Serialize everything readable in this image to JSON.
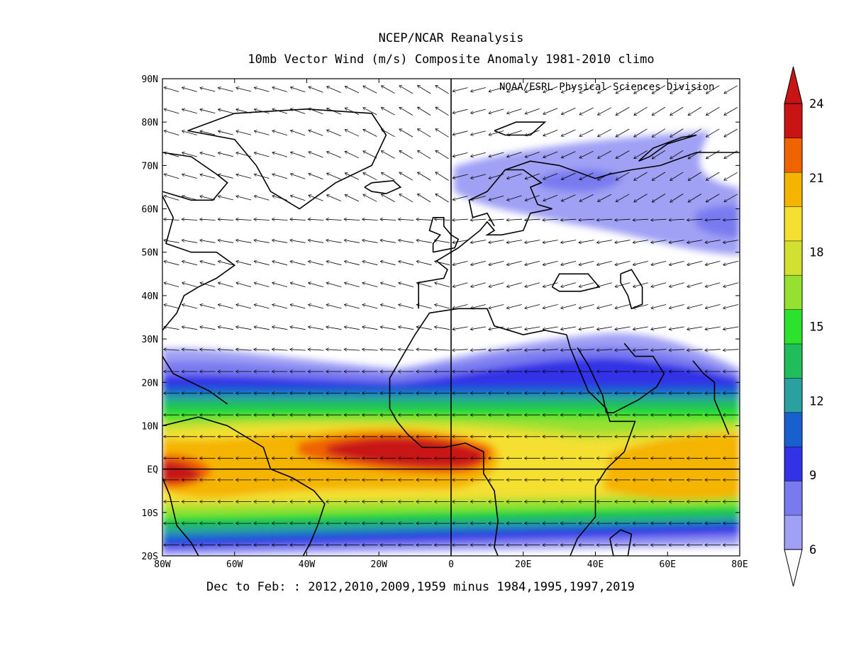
{
  "title": "NCEP/NCAR Reanalysis",
  "subtitle": "10mb Vector Wind (m/s) Composite Anomaly 1981-2010 climo",
  "credit": "NOAA/ESRL Physical Sciences Division",
  "caption": "Dec to Feb: : 2012,2010,2009,1959 minus 1984,1995,1997,2019",
  "map": {
    "lon_range": [
      -80,
      80
    ],
    "lat_range": [
      -20,
      90
    ],
    "lon_ticks": [
      "80W",
      "60W",
      "40W",
      "20W",
      "0",
      "20E",
      "40E",
      "60E",
      "80E"
    ],
    "lat_ticks": [
      "90N",
      "80N",
      "70N",
      "60N",
      "50N",
      "40N",
      "30N",
      "20N",
      "10N",
      "EQ",
      "10S",
      "20S"
    ],
    "vector_spacing_deg": 5,
    "reference_lines": [
      "equator",
      "prime-meridian"
    ]
  },
  "colorbar": {
    "labels": [
      "24",
      "21",
      "18",
      "15",
      "12",
      "9",
      "6"
    ],
    "levels": [
      6,
      7.5,
      9,
      10.5,
      12,
      13.5,
      15,
      16.5,
      18,
      19.5,
      21,
      22.5,
      24
    ],
    "colors": [
      "#a0a0f5",
      "#7a7af0",
      "#3232e6",
      "#1860d0",
      "#2aa0a0",
      "#1fbe5a",
      "#2de22d",
      "#96e032",
      "#d2e032",
      "#f5e032",
      "#f5b400",
      "#f06400",
      "#c81414"
    ],
    "under_color": "#ffffff",
    "over_color": "#c81414"
  }
}
